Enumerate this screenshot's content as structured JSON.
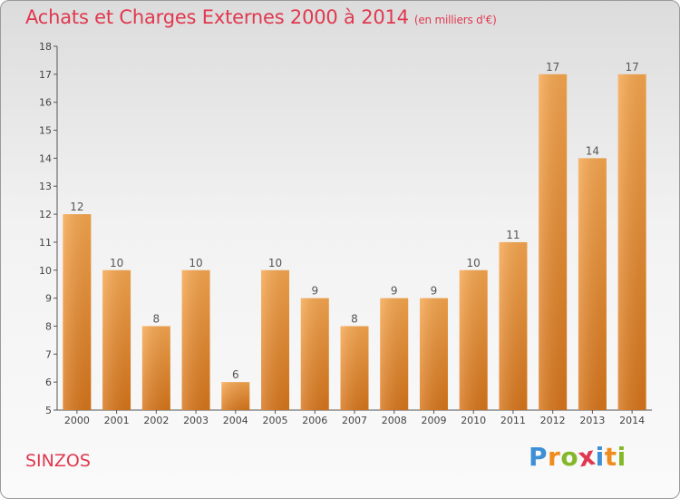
{
  "header": {
    "title": "Achats et Charges Externes 2000 à 2014",
    "subtitle": "(en milliers d'€)"
  },
  "footer": {
    "town": "SINZOS",
    "logo_letters": [
      "P",
      "r",
      "o",
      "x",
      "i",
      "t",
      "i"
    ],
    "logo_colors": [
      "#3d8fd6",
      "#f08c1c",
      "#84b82a",
      "#e0384f",
      "#3d8fd6",
      "#f08c1c",
      "#84b82a"
    ]
  },
  "colors": {
    "bar_light": "#f6a64e",
    "bar_dark": "#d7751a",
    "title": "#e0384f",
    "axis": "#555555"
  },
  "chart_data": {
    "type": "bar",
    "categories": [
      "2000",
      "2001",
      "2002",
      "2003",
      "2004",
      "2005",
      "2006",
      "2007",
      "2008",
      "2009",
      "2010",
      "2011",
      "2012",
      "2013",
      "2014"
    ],
    "values": [
      12,
      10,
      8,
      10,
      6,
      10,
      9,
      8,
      9,
      9,
      10,
      11,
      17,
      14,
      17
    ],
    "value_labels": [
      "12",
      "10",
      "8",
      "10",
      "6",
      "10",
      "9",
      "8",
      "9",
      "9",
      "10",
      "11",
      "17",
      "14",
      "17"
    ],
    "y_ticks": [
      "5",
      "6",
      "7",
      "8",
      "9",
      "10",
      "11",
      "12",
      "13",
      "14",
      "15",
      "16",
      "17",
      "18"
    ],
    "ylim": [
      5,
      18
    ],
    "grid": false,
    "title": "Achats et Charges Externes 2000 à 2014",
    "xlabel": "",
    "ylabel": ""
  }
}
